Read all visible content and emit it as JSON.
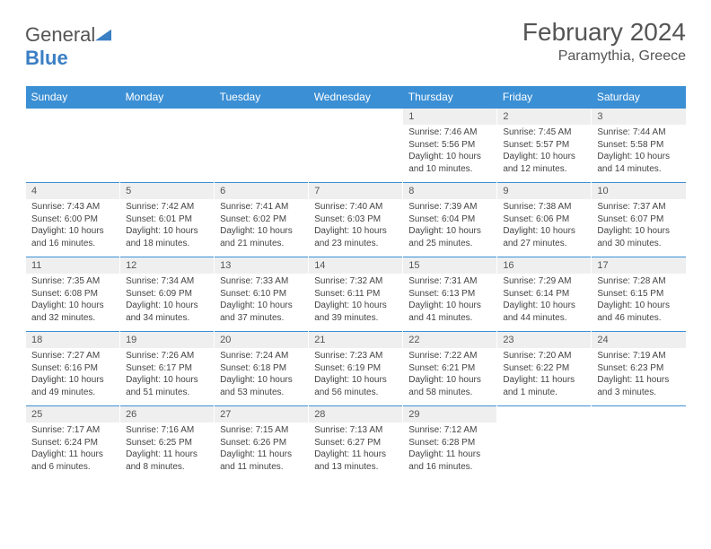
{
  "logo": {
    "word1": "General",
    "word2": "Blue"
  },
  "title": "February 2024",
  "location": "Paramythia, Greece",
  "colors": {
    "header_bg": "#3b8fd4",
    "header_text": "#ffffff",
    "daynum_bg": "#efefef",
    "text": "#444444",
    "title_text": "#555555",
    "logo_blue": "#3b7fc4",
    "rule": "#3b8fd4"
  },
  "day_headers": [
    "Sunday",
    "Monday",
    "Tuesday",
    "Wednesday",
    "Thursday",
    "Friday",
    "Saturday"
  ],
  "weeks": [
    [
      null,
      null,
      null,
      null,
      {
        "n": "1",
        "sr": "7:46 AM",
        "ss": "5:56 PM",
        "dl": "10 hours and 10 minutes."
      },
      {
        "n": "2",
        "sr": "7:45 AM",
        "ss": "5:57 PM",
        "dl": "10 hours and 12 minutes."
      },
      {
        "n": "3",
        "sr": "7:44 AM",
        "ss": "5:58 PM",
        "dl": "10 hours and 14 minutes."
      }
    ],
    [
      {
        "n": "4",
        "sr": "7:43 AM",
        "ss": "6:00 PM",
        "dl": "10 hours and 16 minutes."
      },
      {
        "n": "5",
        "sr": "7:42 AM",
        "ss": "6:01 PM",
        "dl": "10 hours and 18 minutes."
      },
      {
        "n": "6",
        "sr": "7:41 AM",
        "ss": "6:02 PM",
        "dl": "10 hours and 21 minutes."
      },
      {
        "n": "7",
        "sr": "7:40 AM",
        "ss": "6:03 PM",
        "dl": "10 hours and 23 minutes."
      },
      {
        "n": "8",
        "sr": "7:39 AM",
        "ss": "6:04 PM",
        "dl": "10 hours and 25 minutes."
      },
      {
        "n": "9",
        "sr": "7:38 AM",
        "ss": "6:06 PM",
        "dl": "10 hours and 27 minutes."
      },
      {
        "n": "10",
        "sr": "7:37 AM",
        "ss": "6:07 PM",
        "dl": "10 hours and 30 minutes."
      }
    ],
    [
      {
        "n": "11",
        "sr": "7:35 AM",
        "ss": "6:08 PM",
        "dl": "10 hours and 32 minutes."
      },
      {
        "n": "12",
        "sr": "7:34 AM",
        "ss": "6:09 PM",
        "dl": "10 hours and 34 minutes."
      },
      {
        "n": "13",
        "sr": "7:33 AM",
        "ss": "6:10 PM",
        "dl": "10 hours and 37 minutes."
      },
      {
        "n": "14",
        "sr": "7:32 AM",
        "ss": "6:11 PM",
        "dl": "10 hours and 39 minutes."
      },
      {
        "n": "15",
        "sr": "7:31 AM",
        "ss": "6:13 PM",
        "dl": "10 hours and 41 minutes."
      },
      {
        "n": "16",
        "sr": "7:29 AM",
        "ss": "6:14 PM",
        "dl": "10 hours and 44 minutes."
      },
      {
        "n": "17",
        "sr": "7:28 AM",
        "ss": "6:15 PM",
        "dl": "10 hours and 46 minutes."
      }
    ],
    [
      {
        "n": "18",
        "sr": "7:27 AM",
        "ss": "6:16 PM",
        "dl": "10 hours and 49 minutes."
      },
      {
        "n": "19",
        "sr": "7:26 AM",
        "ss": "6:17 PM",
        "dl": "10 hours and 51 minutes."
      },
      {
        "n": "20",
        "sr": "7:24 AM",
        "ss": "6:18 PM",
        "dl": "10 hours and 53 minutes."
      },
      {
        "n": "21",
        "sr": "7:23 AM",
        "ss": "6:19 PM",
        "dl": "10 hours and 56 minutes."
      },
      {
        "n": "22",
        "sr": "7:22 AM",
        "ss": "6:21 PM",
        "dl": "10 hours and 58 minutes."
      },
      {
        "n": "23",
        "sr": "7:20 AM",
        "ss": "6:22 PM",
        "dl": "11 hours and 1 minute."
      },
      {
        "n": "24",
        "sr": "7:19 AM",
        "ss": "6:23 PM",
        "dl": "11 hours and 3 minutes."
      }
    ],
    [
      {
        "n": "25",
        "sr": "7:17 AM",
        "ss": "6:24 PM",
        "dl": "11 hours and 6 minutes."
      },
      {
        "n": "26",
        "sr": "7:16 AM",
        "ss": "6:25 PM",
        "dl": "11 hours and 8 minutes."
      },
      {
        "n": "27",
        "sr": "7:15 AM",
        "ss": "6:26 PM",
        "dl": "11 hours and 11 minutes."
      },
      {
        "n": "28",
        "sr": "7:13 AM",
        "ss": "6:27 PM",
        "dl": "11 hours and 13 minutes."
      },
      {
        "n": "29",
        "sr": "7:12 AM",
        "ss": "6:28 PM",
        "dl": "11 hours and 16 minutes."
      },
      null,
      null
    ]
  ],
  "labels": {
    "sunrise": "Sunrise: ",
    "sunset": "Sunset: ",
    "daylight": "Daylight: "
  }
}
